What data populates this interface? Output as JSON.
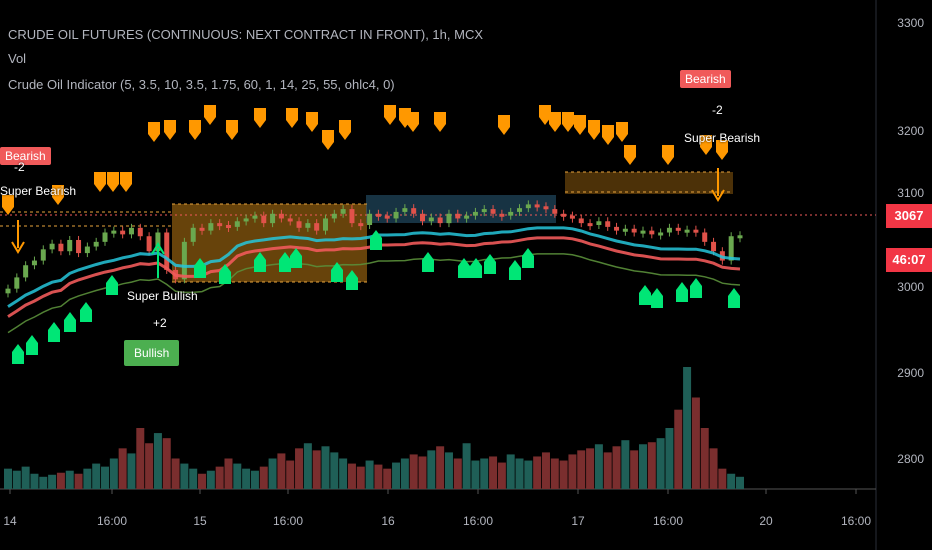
{
  "header": {
    "title": "CRUDE OIL FUTURES (CONTINUOUS: NEXT CONTRACT IN FRONT), 1h, MCX",
    "vol_label": "Vol",
    "indicator_label": "Crude Oil Indicator (5, 3.5, 10, 3.5, 1.75, 60, 1, 14, 25, 55, ohlc4, 0)"
  },
  "price_axis": {
    "ticks": [
      "3300",
      "3200",
      "3100",
      "3000",
      "2900",
      "2800"
    ],
    "last_price": "3067",
    "countdown": "46:07",
    "last_price_color": "#f23645"
  },
  "time_axis": {
    "ticks": [
      "14",
      "16:00",
      "15",
      "16:00",
      "16",
      "16:00",
      "17",
      "16:00",
      "20",
      "16:00"
    ]
  },
  "signals": [
    {
      "type": "bearish",
      "label": "Bearish",
      "count": "-2",
      "extra": "Super Bearish",
      "color": "#f05a5a"
    },
    {
      "type": "bearish",
      "label": "Bearish",
      "count": "-2",
      "extra": "Super Bearish",
      "color": "#f05a5a"
    },
    {
      "type": "bullish",
      "label": "Bullish",
      "count": "+2",
      "extra": "Super Bullish",
      "color": "#4caf50"
    }
  ],
  "colors": {
    "up": "#6aa84f",
    "down": "#e0524a",
    "vol_up": "#1f5f57",
    "vol_down": "#7a2e2e",
    "orange_marker": "#ff9800",
    "green_marker": "#00e676",
    "ema_fast": "#f05a5a",
    "ema_slow": "#26c6da",
    "zone_fill": "#8a5a0f",
    "zone_blue": "#2a5d7a"
  },
  "chart_data": {
    "type": "candlestick",
    "symbol": "CRUDE OIL FUTURES (CONTINUOUS: NEXT CONTRACT IN FRONT)",
    "interval": "1h",
    "exchange": "MCX",
    "ylim": [
      2750,
      3320
    ],
    "close_approx": [
      3010,
      3022,
      3035,
      3040,
      3052,
      3058,
      3050,
      3062,
      3048,
      3055,
      3060,
      3070,
      3072,
      3068,
      3075,
      3066,
      3050,
      3070,
      3030,
      3020,
      3060,
      3075,
      3072,
      3080,
      3078,
      3076,
      3082,
      3085,
      3088,
      3080,
      3090,
      3085,
      3082,
      3075,
      3080,
      3072,
      3085,
      3090,
      3095,
      3080,
      3078,
      3090,
      3088,
      3085,
      3092,
      3096,
      3090,
      3082,
      3086,
      3080,
      3090,
      3085,
      3088,
      3092,
      3095,
      3090,
      3088,
      3092,
      3096,
      3100,
      3098,
      3095,
      3090,
      3088,
      3085,
      3080,
      3078,
      3082,
      3076,
      3072,
      3074,
      3070,
      3072,
      3068,
      3070,
      3075,
      3072,
      3073,
      3070,
      3060,
      3050,
      3040,
      3066,
      3067
    ],
    "volume_relative": [
      20,
      18,
      22,
      15,
      12,
      14,
      16,
      18,
      15,
      20,
      25,
      22,
      30,
      40,
      35,
      60,
      45,
      55,
      50,
      30,
      25,
      20,
      15,
      18,
      22,
      30,
      25,
      20,
      18,
      22,
      30,
      35,
      28,
      40,
      45,
      38,
      42,
      36,
      30,
      25,
      22,
      28,
      24,
      20,
      26,
      30,
      34,
      32,
      38,
      42,
      36,
      30,
      45,
      28,
      30,
      32,
      26,
      34,
      30,
      28,
      32,
      36,
      30,
      28,
      34,
      38,
      40,
      44,
      36,
      42,
      48,
      38,
      44,
      46,
      50,
      60,
      78,
      120,
      90,
      60,
      40,
      20,
      15,
      12
    ]
  }
}
